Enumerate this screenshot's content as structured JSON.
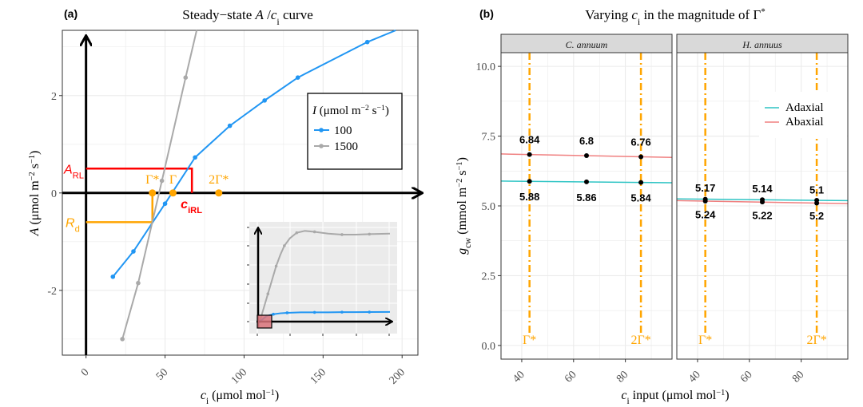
{
  "chart_data": [
    {
      "panel_label": "(a)",
      "type": "line",
      "title": [
        {
          "t": "Steady−state "
        },
        {
          "t": "A",
          "i": true
        },
        {
          "t": " /"
        },
        {
          "t": "c",
          "i": true
        },
        {
          "t": "i",
          "sub": true
        },
        {
          "t": " curve"
        }
      ],
      "xlabel": [
        {
          "t": "c",
          "i": true
        },
        {
          "t": "i",
          "sub": true
        },
        {
          "t": " (μmol mol"
        },
        {
          "t": "−1",
          "sup": true
        },
        {
          "t": ")"
        }
      ],
      "ylabel": [
        {
          "t": "A",
          "i": true
        },
        {
          "t": " (μmol  m"
        },
        {
          "t": "−2",
          "sup": true
        },
        {
          "t": " s"
        },
        {
          "t": "−1",
          "sup": true
        },
        {
          "t": ")"
        }
      ],
      "xlim": [
        -15,
        210
      ],
      "ylim": [
        -3.33,
        3.34
      ],
      "xticks": [
        0,
        50,
        100,
        150,
        200
      ],
      "yticks": [
        -2,
        0,
        2
      ],
      "grid": true,
      "legend": {
        "title": [
          {
            "t": "I",
            "i": true
          },
          {
            "t": " (μmol m"
          },
          {
            "t": "−2",
            "sup": true
          },
          {
            "t": " s"
          },
          {
            "t": "−1",
            "sup": true
          },
          {
            "t": ")"
          }
        ],
        "position": "right"
      },
      "series": [
        {
          "name": "100",
          "color": "#2196f3",
          "x": [
            17,
            30,
            50,
            69,
            91,
            113,
            134,
            178
          ],
          "y": [
            -1.72,
            -1.2,
            -0.22,
            0.73,
            1.38,
            1.9,
            2.37,
            3.1
          ],
          "line_end": [
            196,
            3.34
          ]
        },
        {
          "name": "1500",
          "color": "#a9a9a9",
          "x": [
            23,
            33,
            48,
            63
          ],
          "y": [
            -3.0,
            -1.85,
            0.25,
            2.37
          ],
          "line_end": [
            70,
            3.34
          ]
        }
      ],
      "annotations": {
        "A_RL": {
          "label": "A",
          "sub": "RL",
          "value": 0.5,
          "ci": 67,
          "ci_label": "c",
          "ci_sub": "iRL",
          "color": "#ff0000"
        },
        "Rd": {
          "label": "R",
          "sub": "d",
          "value": -0.6,
          "ci": 42,
          "color": "#ffa500"
        },
        "points": [
          {
            "label": "Γ*",
            "x": 42
          },
          {
            "label": "Γ",
            "x": 55
          },
          {
            "label": "2Γ*",
            "x": 84
          }
        ]
      },
      "inset": {
        "background": "#ebebeb",
        "series": [
          {
            "color": "#a9a9a9",
            "x": [
              0,
              3,
              6,
              9,
              12,
              15,
              18,
              22,
              27,
              33,
              40,
              50,
              60,
              70,
              80,
              95
            ],
            "y": [
              0,
              0.15,
              0.3,
              0.45,
              0.6,
              0.72,
              0.82,
              0.9,
              0.96,
              0.98,
              0.97,
              0.95,
              0.94,
              0.94,
              0.945,
              0.95
            ]
          },
          {
            "color": "#2196f3",
            "x": [
              0,
              5,
              10,
              15,
              20,
              30,
              40,
              50,
              60,
              70,
              80,
              95
            ],
            "y": [
              0,
              0.06,
              0.08,
              0.09,
              0.095,
              0.1,
              0.1,
              0.1,
              0.102,
              0.102,
              0.103,
              0.104
            ]
          }
        ],
        "highlight_color": "#d9737a"
      }
    },
    {
      "panel_label": "(b)",
      "type": "line",
      "title": [
        {
          "t": "Varying "
        },
        {
          "t": "c",
          "i": true
        },
        {
          "t": "i",
          "sub": true
        },
        {
          "t": " in the magnitude of Γ"
        },
        {
          "t": "*",
          "sup": true
        }
      ],
      "xlabel": [
        {
          "t": "c",
          "i": true
        },
        {
          "t": "i",
          "sub": true
        },
        {
          "t": " input (μmol mol"
        },
        {
          "t": "−1",
          "sup": true
        },
        {
          "t": ")"
        }
      ],
      "ylabel": [
        {
          "t": "g",
          "i": true
        },
        {
          "t": "cw",
          "sub": true
        },
        {
          "t": " (mmol  m"
        },
        {
          "t": "−2",
          "sup": true
        },
        {
          "t": " s"
        },
        {
          "t": "−1",
          "sup": true
        },
        {
          "t": ")"
        }
      ],
      "xlim": [
        32,
        98
      ],
      "ylim": [
        -0.49,
        10.49
      ],
      "xticks": [
        40,
        60,
        80
      ],
      "yticks": [
        0.0,
        2.5,
        5.0,
        7.5,
        10.0
      ],
      "ytick_labels": [
        "0.0",
        "2.5",
        "5.0",
        "7.5",
        "10.0"
      ],
      "grid": true,
      "legend": {
        "position": "right (inside H. annuus panel)"
      },
      "series_colors": {
        "Adaxial": "#2ec4c4",
        "Abaxial": "#f08080"
      },
      "legend_entries": [
        "Adaxial",
        "Abaxial"
      ],
      "vlines": [
        {
          "x": 43,
          "label": "Γ*"
        },
        {
          "x": 86,
          "label": "2Γ*"
        }
      ],
      "vline_color": "#ffa500",
      "facets": [
        {
          "name": "C. annuum",
          "series": [
            {
              "name": "Abaxial",
              "x": [
                43,
                65,
                86
              ],
              "y": [
                6.84,
                6.8,
                6.76
              ],
              "labels": [
                "6.84",
                "6.8",
                "6.76"
              ],
              "label_pos": "above"
            },
            {
              "name": "Adaxial",
              "x": [
                43,
                65,
                86
              ],
              "y": [
                5.88,
                5.86,
                5.84
              ],
              "labels": [
                "5.88",
                "5.86",
                "5.84"
              ],
              "label_pos": "below"
            }
          ]
        },
        {
          "name": "H. annuus",
          "series": [
            {
              "name": "Abaxial",
              "x": [
                43,
                65,
                86
              ],
              "y": [
                5.17,
                5.14,
                5.1
              ],
              "labels": [
                "5.17",
                "5.14",
                "5.1"
              ],
              "label_pos": "above"
            },
            {
              "name": "Adaxial",
              "x": [
                43,
                65,
                86
              ],
              "y": [
                5.24,
                5.22,
                5.2
              ],
              "labels": [
                "5.24",
                "5.22",
                "5.2"
              ],
              "label_pos": "below"
            }
          ]
        }
      ]
    }
  ]
}
